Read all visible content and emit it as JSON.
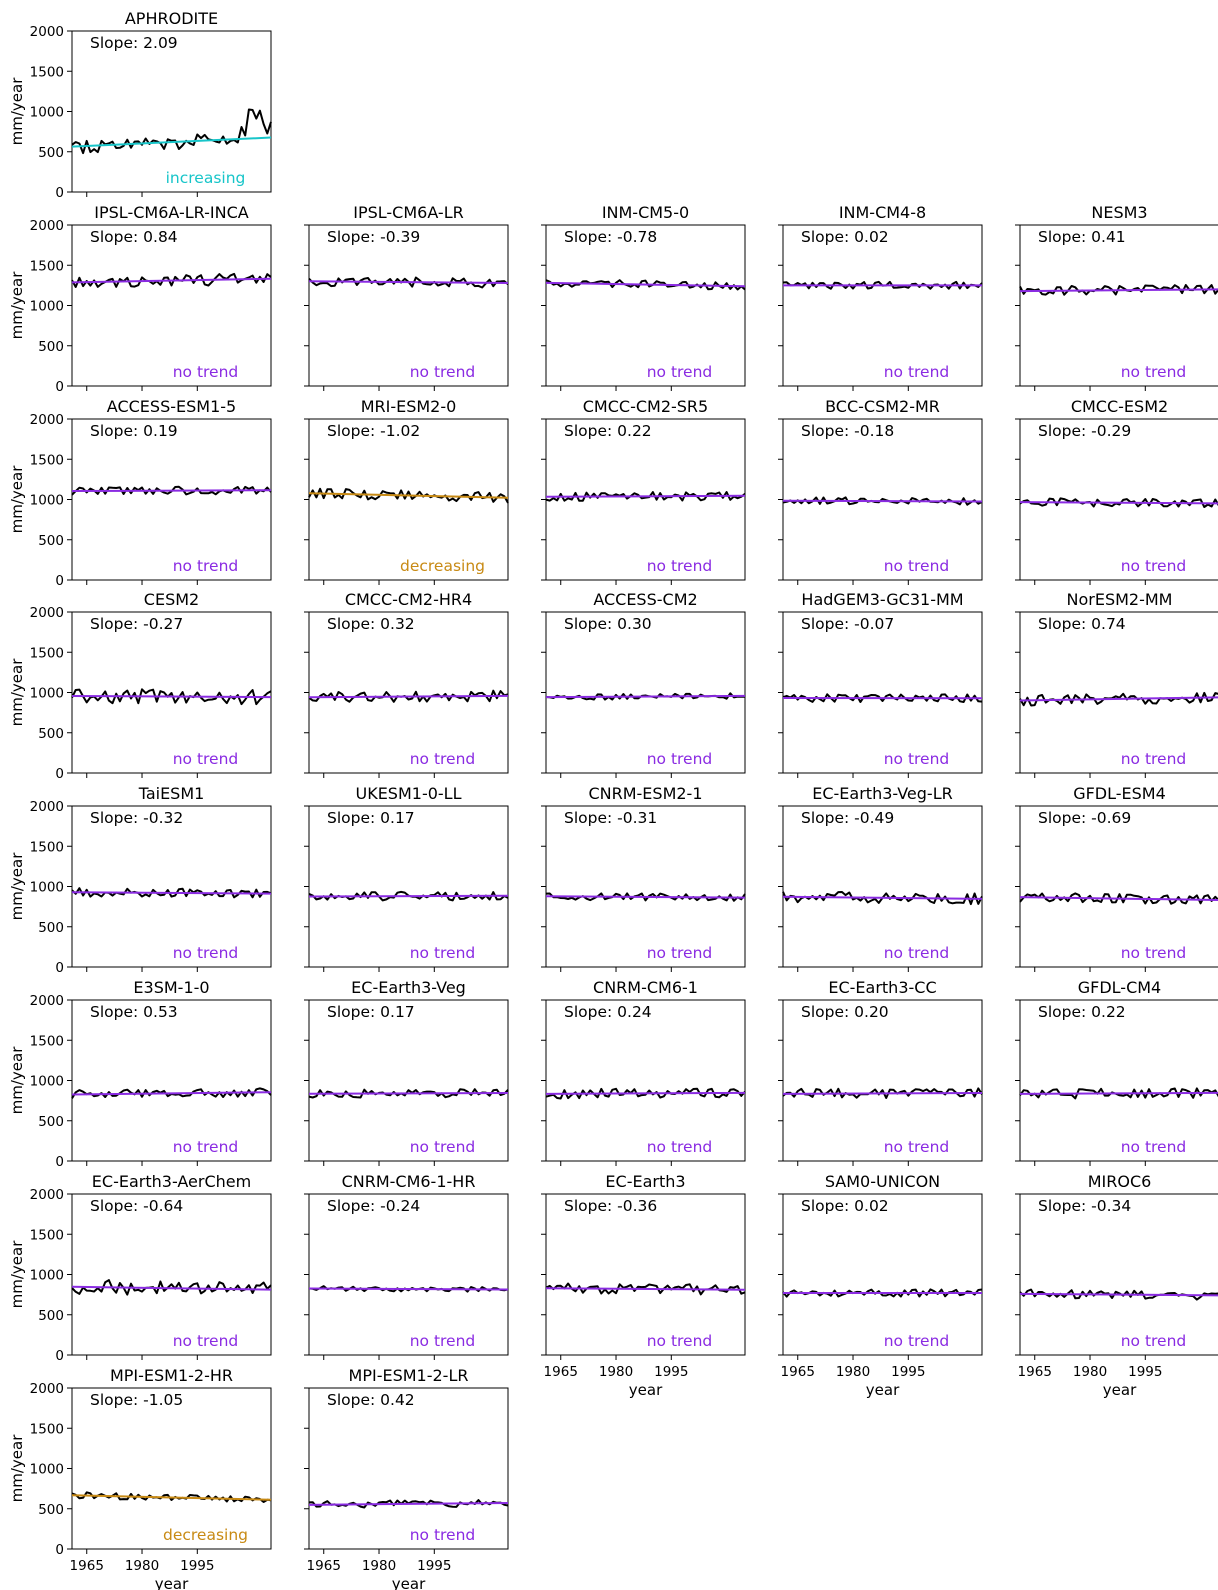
{
  "chart_data": {
    "type": "line",
    "x_range": [
      1961,
      2015
    ],
    "ylim": [
      0,
      2000
    ],
    "yticks": [
      0,
      500,
      1000,
      1500,
      2000
    ],
    "xticks": [
      1965,
      1980,
      1995
    ],
    "ylabel": "mm/year",
    "xlabel": "year",
    "slope_prefix": "Slope: ",
    "trend_colors": {
      "increasing": "#17c5c9",
      "no trend": "#8a2be2",
      "decreasing": "#c88a14"
    },
    "series_color": "#000000",
    "panels": [
      {
        "name": "APHRODITE",
        "slope": "2.09",
        "trend": "increasing",
        "mean": 620,
        "noise": 90,
        "row": 0,
        "col": 0
      },
      {
        "name": "IPSL-CM6A-LR-INCA",
        "slope": "0.84",
        "trend": "no trend",
        "mean": 1310,
        "noise": 70,
        "row": 1,
        "col": 0
      },
      {
        "name": "IPSL-CM6A-LR",
        "slope": "-0.39",
        "trend": "no trend",
        "mean": 1290,
        "noise": 60,
        "row": 1,
        "col": 1
      },
      {
        "name": "INM-CM5-0",
        "slope": "-0.78",
        "trend": "no trend",
        "mean": 1260,
        "noise": 50,
        "row": 1,
        "col": 2
      },
      {
        "name": "INM-CM4-8",
        "slope": "0.02",
        "trend": "no trend",
        "mean": 1250,
        "noise": 45,
        "row": 1,
        "col": 3
      },
      {
        "name": "NESM3",
        "slope": "0.41",
        "trend": "no trend",
        "mean": 1190,
        "noise": 60,
        "row": 1,
        "col": 4
      },
      {
        "name": "ACCESS-ESM1-5",
        "slope": "0.19",
        "trend": "no trend",
        "mean": 1110,
        "noise": 50,
        "row": 2,
        "col": 0
      },
      {
        "name": "MRI-ESM2-0",
        "slope": "-1.02",
        "trend": "decreasing",
        "mean": 1050,
        "noise": 65,
        "row": 2,
        "col": 1
      },
      {
        "name": "CMCC-CM2-SR5",
        "slope": "0.22",
        "trend": "no trend",
        "mean": 1040,
        "noise": 55,
        "row": 2,
        "col": 2
      },
      {
        "name": "BCC-CSM2-MR",
        "slope": "-0.18",
        "trend": "no trend",
        "mean": 980,
        "noise": 45,
        "row": 2,
        "col": 3
      },
      {
        "name": "CMCC-ESM2",
        "slope": "-0.29",
        "trend": "no trend",
        "mean": 960,
        "noise": 50,
        "row": 2,
        "col": 4
      },
      {
        "name": "CESM2",
        "slope": "-0.27",
        "trend": "no trend",
        "mean": 950,
        "noise": 90,
        "row": 3,
        "col": 0
      },
      {
        "name": "CMCC-CM2-HR4",
        "slope": "0.32",
        "trend": "no trend",
        "mean": 950,
        "noise": 65,
        "row": 3,
        "col": 1
      },
      {
        "name": "ACCESS-CM2",
        "slope": "0.30",
        "trend": "no trend",
        "mean": 950,
        "noise": 35,
        "row": 3,
        "col": 2
      },
      {
        "name": "HadGEM3-GC31-MM",
        "slope": "-0.07",
        "trend": "no trend",
        "mean": 930,
        "noise": 50,
        "row": 3,
        "col": 3
      },
      {
        "name": "NorESM2-MM",
        "slope": "0.74",
        "trend": "no trend",
        "mean": 920,
        "noise": 65,
        "row": 3,
        "col": 4
      },
      {
        "name": "TaiESM1",
        "slope": "-0.32",
        "trend": "no trend",
        "mean": 920,
        "noise": 55,
        "row": 4,
        "col": 0
      },
      {
        "name": "UKESM1-0-LL",
        "slope": "0.17",
        "trend": "no trend",
        "mean": 880,
        "noise": 55,
        "row": 4,
        "col": 1
      },
      {
        "name": "CNRM-ESM2-1",
        "slope": "-0.31",
        "trend": "no trend",
        "mean": 870,
        "noise": 45,
        "row": 4,
        "col": 2
      },
      {
        "name": "EC-Earth3-Veg-LR",
        "slope": "-0.49",
        "trend": "no trend",
        "mean": 860,
        "noise": 70,
        "row": 4,
        "col": 3
      },
      {
        "name": "GFDL-ESM4",
        "slope": "-0.69",
        "trend": "no trend",
        "mean": 850,
        "noise": 60,
        "row": 4,
        "col": 4
      },
      {
        "name": "E3SM-1-0",
        "slope": "0.53",
        "trend": "no trend",
        "mean": 840,
        "noise": 55,
        "row": 5,
        "col": 0
      },
      {
        "name": "EC-Earth3-Veg",
        "slope": "0.17",
        "trend": "no trend",
        "mean": 840,
        "noise": 50,
        "row": 5,
        "col": 1
      },
      {
        "name": "CNRM-CM6-1",
        "slope": "0.24",
        "trend": "no trend",
        "mean": 840,
        "noise": 60,
        "row": 5,
        "col": 2
      },
      {
        "name": "EC-Earth3-CC",
        "slope": "0.20",
        "trend": "no trend",
        "mean": 840,
        "noise": 60,
        "row": 5,
        "col": 3
      },
      {
        "name": "GFDL-CM4",
        "slope": "0.22",
        "trend": "no trend",
        "mean": 840,
        "noise": 60,
        "row": 5,
        "col": 4
      },
      {
        "name": "EC-Earth3-AerChem",
        "slope": "-0.64",
        "trend": "no trend",
        "mean": 830,
        "noise": 90,
        "row": 6,
        "col": 0
      },
      {
        "name": "CNRM-CM6-1-HR",
        "slope": "-0.24",
        "trend": "no trend",
        "mean": 820,
        "noise": 30,
        "row": 6,
        "col": 1
      },
      {
        "name": "EC-Earth3",
        "slope": "-0.36",
        "trend": "no trend",
        "mean": 820,
        "noise": 65,
        "row": 6,
        "col": 2
      },
      {
        "name": "SAM0-UNICON",
        "slope": "0.02",
        "trend": "no trend",
        "mean": 770,
        "noise": 45,
        "row": 6,
        "col": 3
      },
      {
        "name": "MIROC6",
        "slope": "-0.34",
        "trend": "no trend",
        "mean": 750,
        "noise": 55,
        "row": 6,
        "col": 4
      },
      {
        "name": "MPI-ESM1-2-HR",
        "slope": "-1.05",
        "trend": "decreasing",
        "mean": 640,
        "noise": 40,
        "row": 7,
        "col": 0
      },
      {
        "name": "MPI-ESM1-2-LR",
        "slope": "0.42",
        "trend": "no trend",
        "mean": 560,
        "noise": 45,
        "row": 7,
        "col": 1
      }
    ]
  }
}
